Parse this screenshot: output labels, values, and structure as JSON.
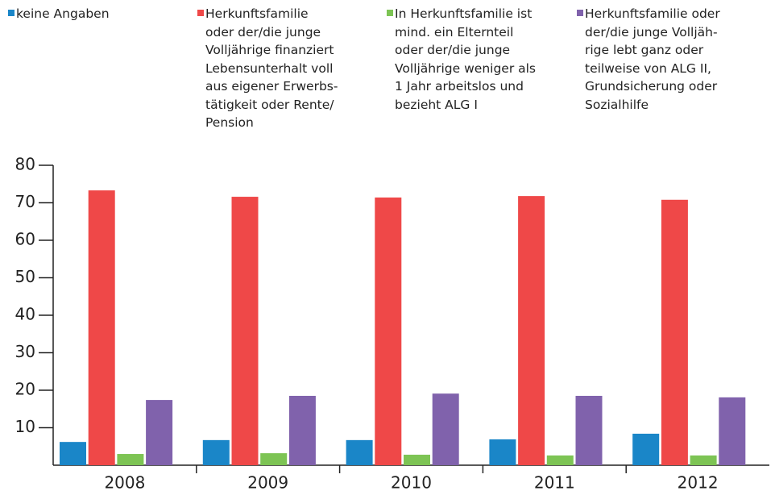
{
  "chart_data": {
    "type": "bar",
    "categories": [
      "2008",
      "2009",
      "2010",
      "2011",
      "2012"
    ],
    "series": [
      {
        "name": "keine Angaben",
        "color": "#1a86c8",
        "values": [
          6.2,
          6.7,
          6.7,
          6.9,
          8.4
        ]
      },
      {
        "name": "Herkunftsfamilie\noder der/die junge\nVolljährige finanziert\nLebensunterhalt voll\naus eigener Erwerbs-\ntätigkeit oder Rente/\nPension",
        "color": "#ef4848",
        "values": [
          73.3,
          71.6,
          71.4,
          71.8,
          70.8
        ]
      },
      {
        "name": "In Herkunftsfamilie ist\nmind. ein Elternteil\noder der/die junge\nVolljährige weniger als\n1 Jahr arbeitslos und\nbezieht ALG I",
        "color": "#7dc454",
        "values": [
          3.0,
          3.2,
          2.8,
          2.6,
          2.6
        ]
      },
      {
        "name": "Herkunftsfamilie oder\nder/die junge Volljäh-\nrige lebt ganz oder\nteilweise von ALG II,\nGrundsicherung oder\nSozialhilfe",
        "color": "#8062ac",
        "values": [
          17.4,
          18.5,
          19.1,
          18.5,
          18.1
        ]
      }
    ],
    "ylim": [
      0,
      80
    ],
    "yticks": [
      10,
      20,
      30,
      40,
      50,
      60,
      70,
      80
    ]
  }
}
